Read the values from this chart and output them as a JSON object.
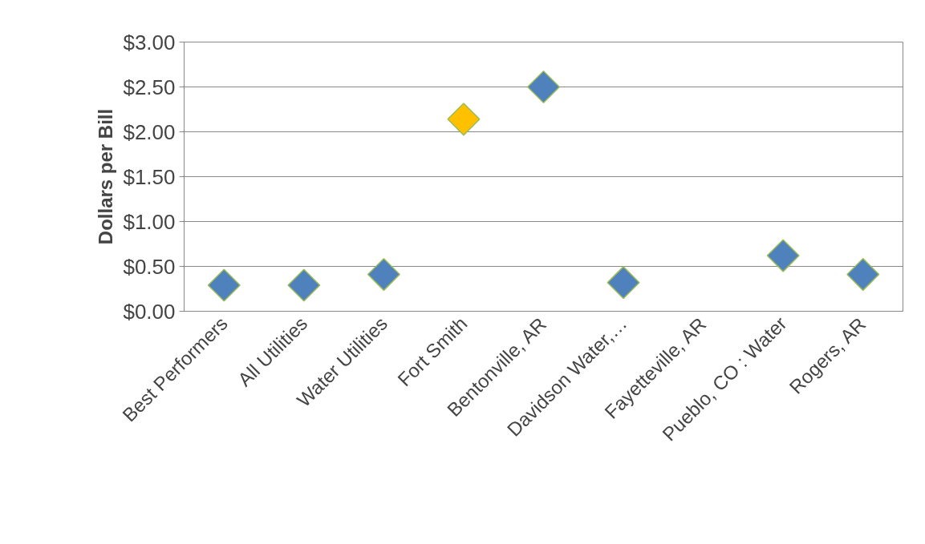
{
  "chart_data": {
    "type": "scatter",
    "ylabel": "Dollars per Bill",
    "categories": [
      "Best Performers",
      "All Utilities",
      "Water Utilities",
      "Fort Smith",
      "Bentonville, AR",
      "Davidson Water,…",
      "Fayetteville, AR",
      "Pueblo, CO : Water",
      "Rogers, AR"
    ],
    "values": [
      0.29,
      0.29,
      0.41,
      2.14,
      2.5,
      0.32,
      null,
      0.62,
      0.41
    ],
    "colors": [
      "#4f81bd",
      "#4f81bd",
      "#4f81bd",
      "#ffc000",
      "#4f81bd",
      "#4f81bd",
      "#4f81bd",
      "#4f81bd",
      "#4f81bd"
    ],
    "marker": "diamond",
    "grid": "y",
    "ylim": [
      0,
      3
    ],
    "yticks": [
      {
        "value": 0,
        "label": "$0.00"
      },
      {
        "value": 0.5,
        "label": "$0.50"
      },
      {
        "value": 1,
        "label": "$1.00"
      },
      {
        "value": 1.5,
        "label": "$1.50"
      },
      {
        "value": 2,
        "label": "$2.00"
      },
      {
        "value": 2.5,
        "label": "$2.50"
      },
      {
        "value": 3,
        "label": "$3.00"
      }
    ]
  }
}
